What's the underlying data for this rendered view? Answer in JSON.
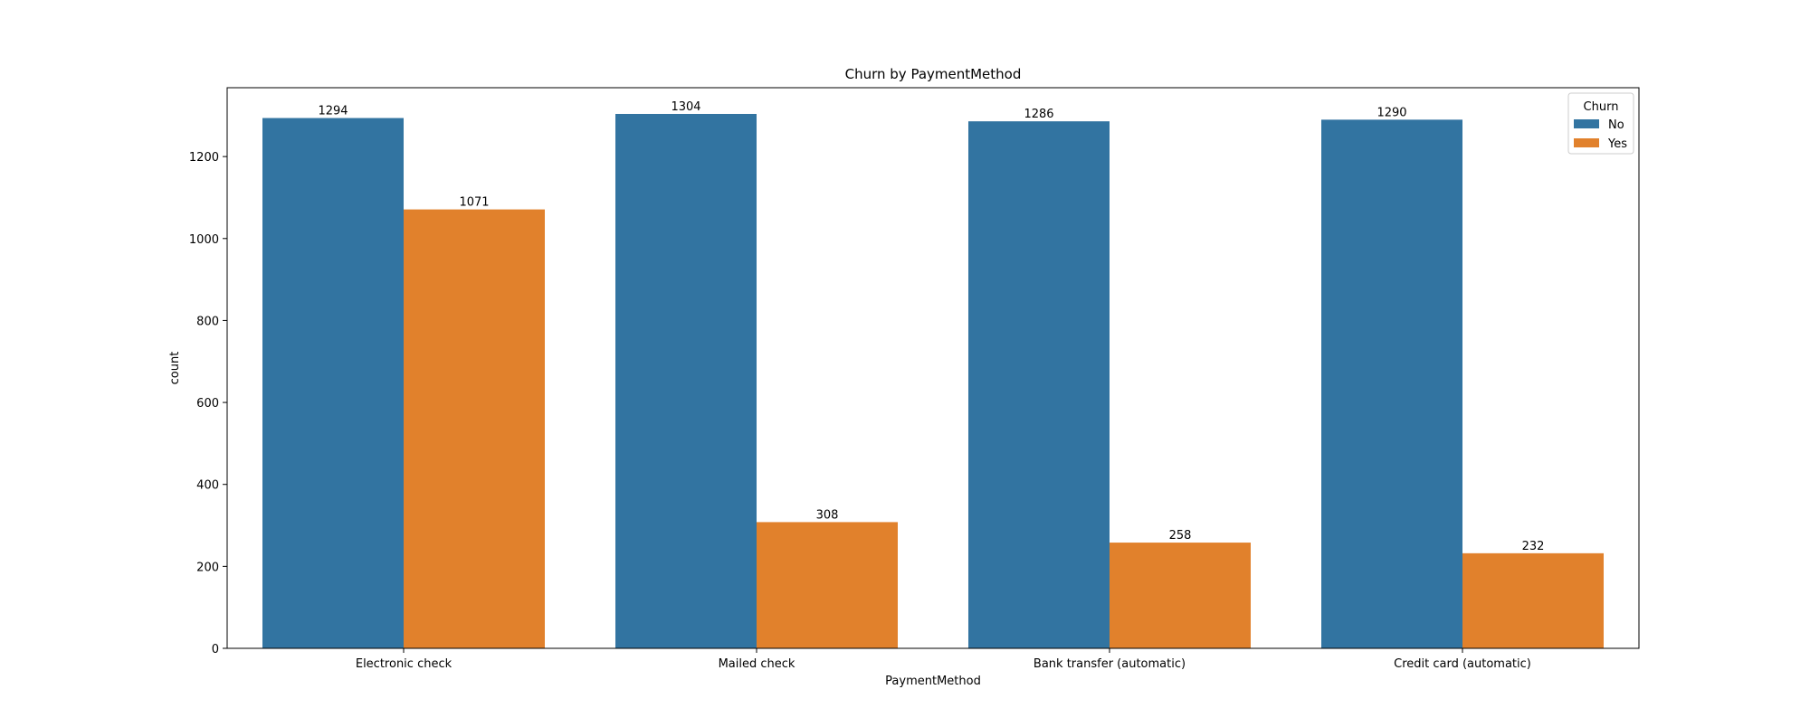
{
  "chart_data": {
    "type": "bar",
    "title": "Churn by PaymentMethod",
    "xlabel": "PaymentMethod",
    "ylabel": "count",
    "categories": [
      "Electronic check",
      "Mailed check",
      "Bank transfer (automatic)",
      "Credit card (automatic)"
    ],
    "series": [
      {
        "name": "No",
        "values": [
          1294,
          1304,
          1286,
          1290
        ],
        "color": "#3274a1"
      },
      {
        "name": "Yes",
        "values": [
          1071,
          308,
          258,
          232
        ],
        "color": "#e1812c"
      }
    ],
    "ylim": [
      0,
      1368
    ],
    "yticks": [
      0,
      200,
      400,
      600,
      800,
      1000,
      1200
    ],
    "legend": {
      "title": "Churn",
      "placement": "top-right"
    },
    "data_labels": true,
    "grid": false
  }
}
